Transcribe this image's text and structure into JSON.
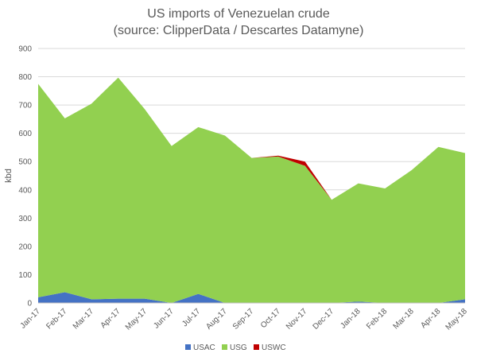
{
  "chart_data": {
    "type": "area",
    "stacked": true,
    "title": "US imports of Venezuelan crude",
    "subtitle": "(source: ClipperData / Descartes Datamyne)",
    "xlabel": "",
    "ylabel": "kbd",
    "ylim": [
      0,
      900
    ],
    "yticks": [
      0,
      100,
      200,
      300,
      400,
      500,
      600,
      700,
      800,
      900
    ],
    "grid": true,
    "legend_position": "bottom",
    "categories": [
      "Jan-17",
      "Feb-17",
      "Mar-17",
      "Apr-17",
      "May-17",
      "Jun-17",
      "Jul-17",
      "Aug-17",
      "Sep-17",
      "Oct-17",
      "Nov-17",
      "Dec-17",
      "Jan-18",
      "Feb-18",
      "Mar-18",
      "Apr-18",
      "May-18"
    ],
    "series": [
      {
        "name": "USAC",
        "color": "#4472c4",
        "values": [
          20,
          38,
          13,
          15,
          15,
          0,
          32,
          0,
          0,
          0,
          0,
          0,
          5,
          0,
          0,
          0,
          13
        ]
      },
      {
        "name": "USG",
        "color": "#92d050",
        "values": [
          755,
          615,
          692,
          782,
          670,
          555,
          590,
          592,
          513,
          518,
          485,
          365,
          418,
          405,
          470,
          552,
          517
        ]
      },
      {
        "name": "USWC",
        "color": "#c00000",
        "values": [
          0,
          0,
          0,
          0,
          0,
          0,
          0,
          0,
          0,
          3,
          15,
          0,
          0,
          0,
          0,
          0,
          0
        ]
      }
    ]
  }
}
